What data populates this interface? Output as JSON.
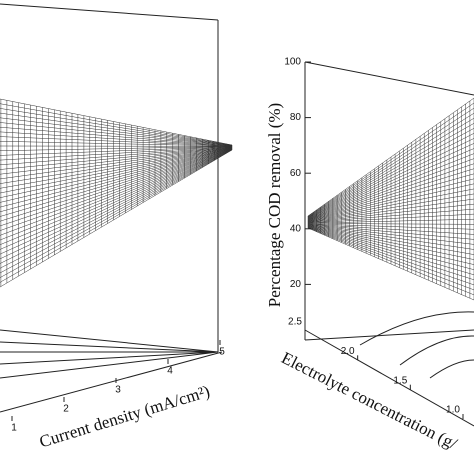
{
  "chart_data": [
    {
      "type": "surface",
      "xlabel": "Current density (mA/cm²)",
      "xlim": [
        1,
        5
      ],
      "xticks": [
        1,
        2,
        3,
        4,
        5
      ]
    },
    {
      "type": "surface",
      "zlabel": "Percentage COD removal (%)",
      "zlim": [
        0,
        100
      ],
      "zticks": [
        20,
        40,
        60,
        80,
        100
      ],
      "ylabel": "Electrolyte concentration (g/",
      "ylim": [
        1,
        2.5
      ],
      "yticks": [
        2.5,
        {
          "value": 2,
          "label": "2.0"
        },
        1.5,
        {
          "value": 1,
          "label": "1.0"
        }
      ]
    }
  ]
}
